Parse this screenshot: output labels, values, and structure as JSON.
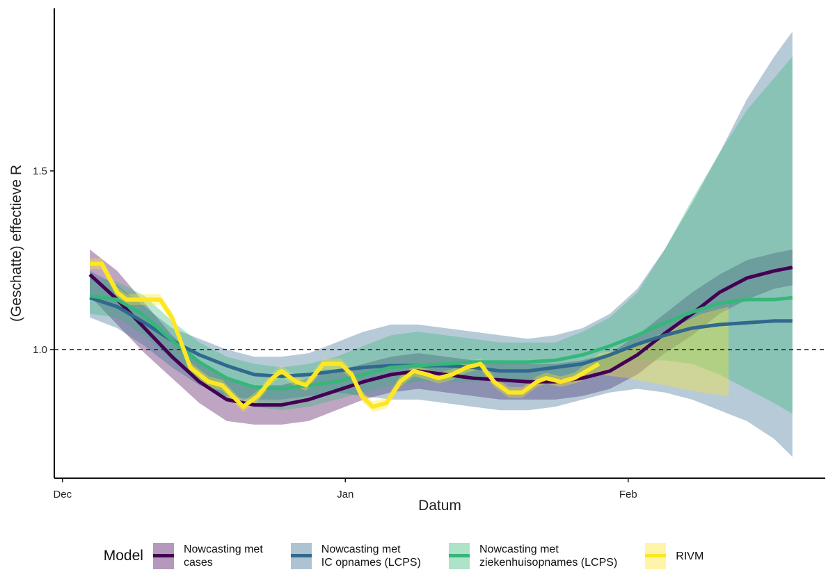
{
  "chart_data": {
    "type": "line",
    "xlabel": "Datum",
    "ylabel": "(Geschatte) effectieve R",
    "xlim": [
      -0.9,
      83.6
    ],
    "xticks": [
      {
        "value": 0,
        "label": "Dec"
      },
      {
        "value": 31,
        "label": "Jan"
      },
      {
        "value": 62,
        "label": "Feb"
      }
    ],
    "ylim": [
      0.64,
      1.955
    ],
    "yticks": [
      {
        "value": 1,
        "label": "1.0"
      },
      {
        "value": 1.5,
        "label": "1.5"
      }
    ],
    "hline": 1,
    "legend_title": "Model",
    "legend": "bottom",
    "series": [
      {
        "name": "Nowcasting met\ncases",
        "color": "#440154",
        "x": [
          3,
          6,
          9,
          12,
          15,
          18,
          21,
          24,
          27,
          30,
          33,
          36,
          39,
          42,
          45,
          48,
          51,
          54,
          57,
          60,
          63,
          66,
          69,
          72,
          75,
          78,
          80
        ],
        "values": [
          1.21,
          1.14,
          1.06,
          0.98,
          0.91,
          0.86,
          0.845,
          0.845,
          0.86,
          0.885,
          0.91,
          0.93,
          0.94,
          0.93,
          0.92,
          0.915,
          0.91,
          0.91,
          0.92,
          0.94,
          0.985,
          1.045,
          1.1,
          1.16,
          1.2,
          1.22,
          1.23
        ],
        "lower": [
          1.15,
          1.07,
          0.99,
          0.92,
          0.85,
          0.8,
          0.79,
          0.79,
          0.8,
          0.83,
          0.86,
          0.88,
          0.89,
          0.88,
          0.87,
          0.86,
          0.86,
          0.86,
          0.87,
          0.89,
          0.93,
          0.99,
          1.04,
          1.1,
          1.14,
          1.17,
          1.18
        ],
        "upper": [
          1.28,
          1.22,
          1.13,
          1.04,
          0.97,
          0.92,
          0.9,
          0.9,
          0.92,
          0.94,
          0.96,
          0.98,
          0.99,
          0.98,
          0.97,
          0.97,
          0.96,
          0.96,
          0.97,
          0.99,
          1.04,
          1.1,
          1.16,
          1.21,
          1.25,
          1.27,
          1.28
        ]
      },
      {
        "name": "Nowcasting met\nIC opnames (LCPS)",
        "color": "#31688e",
        "x": [
          3,
          6,
          9,
          12,
          15,
          18,
          21,
          24,
          27,
          30,
          33,
          36,
          39,
          42,
          45,
          48,
          51,
          54,
          57,
          60,
          63,
          66,
          69,
          72,
          75,
          78,
          80
        ],
        "values": [
          1.145,
          1.12,
          1.075,
          1.025,
          0.985,
          0.955,
          0.93,
          0.925,
          0.93,
          0.94,
          0.95,
          0.955,
          0.955,
          0.955,
          0.95,
          0.94,
          0.94,
          0.95,
          0.96,
          0.985,
          1.015,
          1.04,
          1.06,
          1.07,
          1.075,
          1.08,
          1.08
        ],
        "lower": [
          1.09,
          1.06,
          1.01,
          0.95,
          0.9,
          0.87,
          0.86,
          0.86,
          0.87,
          0.88,
          0.87,
          0.86,
          0.86,
          0.85,
          0.84,
          0.83,
          0.83,
          0.84,
          0.86,
          0.88,
          0.89,
          0.88,
          0.86,
          0.83,
          0.8,
          0.75,
          0.7
        ],
        "upper": [
          1.22,
          1.18,
          1.12,
          1.06,
          1.03,
          1.0,
          0.98,
          0.98,
          0.99,
          1.02,
          1.05,
          1.07,
          1.07,
          1.06,
          1.05,
          1.04,
          1.03,
          1.04,
          1.06,
          1.1,
          1.17,
          1.28,
          1.41,
          1.55,
          1.7,
          1.82,
          1.89
        ]
      },
      {
        "name": "Nowcasting met\nziekenhuisopnames (LCPS)",
        "color": "#35b779",
        "x": [
          3,
          6,
          9,
          12,
          15,
          18,
          21,
          24,
          27,
          30,
          33,
          36,
          39,
          42,
          45,
          48,
          51,
          54,
          57,
          60,
          63,
          66,
          69,
          72,
          75,
          78,
          80
        ],
        "values": [
          1.15,
          1.14,
          1.095,
          1.025,
          0.965,
          0.92,
          0.895,
          0.89,
          0.9,
          0.91,
          0.93,
          0.95,
          0.955,
          0.96,
          0.965,
          0.965,
          0.965,
          0.97,
          0.985,
          1.01,
          1.04,
          1.075,
          1.105,
          1.13,
          1.14,
          1.14,
          1.145
        ],
        "lower": [
          1.1,
          1.09,
          1.04,
          0.97,
          0.91,
          0.86,
          0.84,
          0.83,
          0.84,
          0.86,
          0.88,
          0.9,
          0.91,
          0.91,
          0.91,
          0.91,
          0.91,
          0.92,
          0.93,
          0.95,
          0.97,
          0.97,
          0.96,
          0.93,
          0.89,
          0.85,
          0.82
        ],
        "upper": [
          1.2,
          1.19,
          1.15,
          1.08,
          1.02,
          0.98,
          0.96,
          0.95,
          0.96,
          0.98,
          1.01,
          1.04,
          1.05,
          1.04,
          1.03,
          1.02,
          1.02,
          1.02,
          1.05,
          1.09,
          1.16,
          1.28,
          1.42,
          1.55,
          1.67,
          1.76,
          1.82
        ]
      },
      {
        "name": "RIVM",
        "color": "#fde725",
        "x": [
          3,
          4.3,
          6,
          7,
          10.7,
          12,
          14,
          16,
          17.5,
          19.8,
          21.4,
          23,
          24,
          25.6,
          26.7,
          28.6,
          30.5,
          31.7,
          32.8,
          34,
          35.5,
          37,
          38.5,
          40,
          41.2,
          42.7,
          44.3,
          45.8,
          47.3,
          48.9,
          50.4,
          52,
          53,
          54.6,
          56.1,
          58.8,
          62,
          66,
          70,
          73
        ],
        "values": [
          1.24,
          1.24,
          1.16,
          1.14,
          1.14,
          1.09,
          0.95,
          0.91,
          0.9,
          0.84,
          0.87,
          0.92,
          0.94,
          0.91,
          0.9,
          0.96,
          0.96,
          0.93,
          0.87,
          0.84,
          0.85,
          0.91,
          0.94,
          0.93,
          0.92,
          0.93,
          0.95,
          0.96,
          0.91,
          0.88,
          0.88,
          0.91,
          0.92,
          0.91,
          0.92,
          0.96,
          null,
          null,
          null,
          null
        ],
        "lower": [
          1.225,
          1.225,
          1.145,
          1.125,
          1.125,
          1.075,
          0.935,
          0.895,
          0.885,
          0.825,
          0.855,
          0.905,
          0.925,
          0.895,
          0.885,
          0.945,
          0.945,
          0.915,
          0.855,
          0.825,
          0.835,
          0.895,
          0.925,
          0.915,
          0.905,
          0.915,
          0.935,
          0.945,
          0.895,
          0.865,
          0.865,
          0.895,
          0.905,
          0.895,
          0.905,
          0.93,
          0.92,
          0.9,
          0.88,
          0.87
        ],
        "upper": [
          1.255,
          1.255,
          1.175,
          1.155,
          1.155,
          1.105,
          0.965,
          0.925,
          0.915,
          0.855,
          0.885,
          0.935,
          0.955,
          0.925,
          0.915,
          0.975,
          0.975,
          0.945,
          0.885,
          0.855,
          0.865,
          0.925,
          0.955,
          0.945,
          0.935,
          0.945,
          0.965,
          0.975,
          0.925,
          0.895,
          0.895,
          0.925,
          0.935,
          0.925,
          0.935,
          0.99,
          1.0,
          1.05,
          1.1,
          1.12
        ]
      }
    ]
  }
}
